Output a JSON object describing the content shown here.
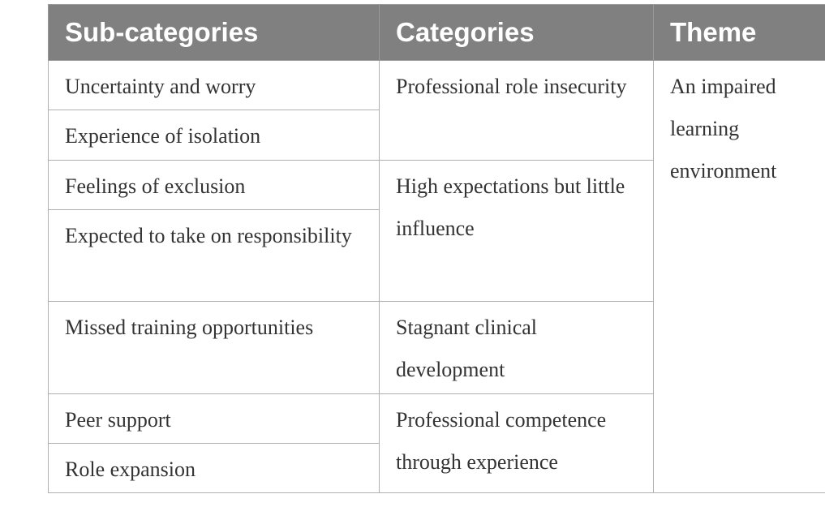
{
  "table": {
    "headers": [
      "Sub-categories",
      "Categories",
      "Theme"
    ],
    "groups": [
      {
        "category": "Professional role insecurity",
        "sub_categories": [
          "Uncertainty and worry",
          "Experience of isolation"
        ]
      },
      {
        "category": "High expectations but little influence",
        "sub_categories": [
          "Feelings of exclusion",
          "Expected to take on responsibility"
        ]
      },
      {
        "category": "Stagnant clinical development",
        "sub_categories": [
          "Missed training opportunities"
        ]
      },
      {
        "category": "Professional competence through experience",
        "sub_categories": [
          "Peer support",
          "Role expansion"
        ]
      }
    ],
    "theme": "An impaired learning environment"
  }
}
